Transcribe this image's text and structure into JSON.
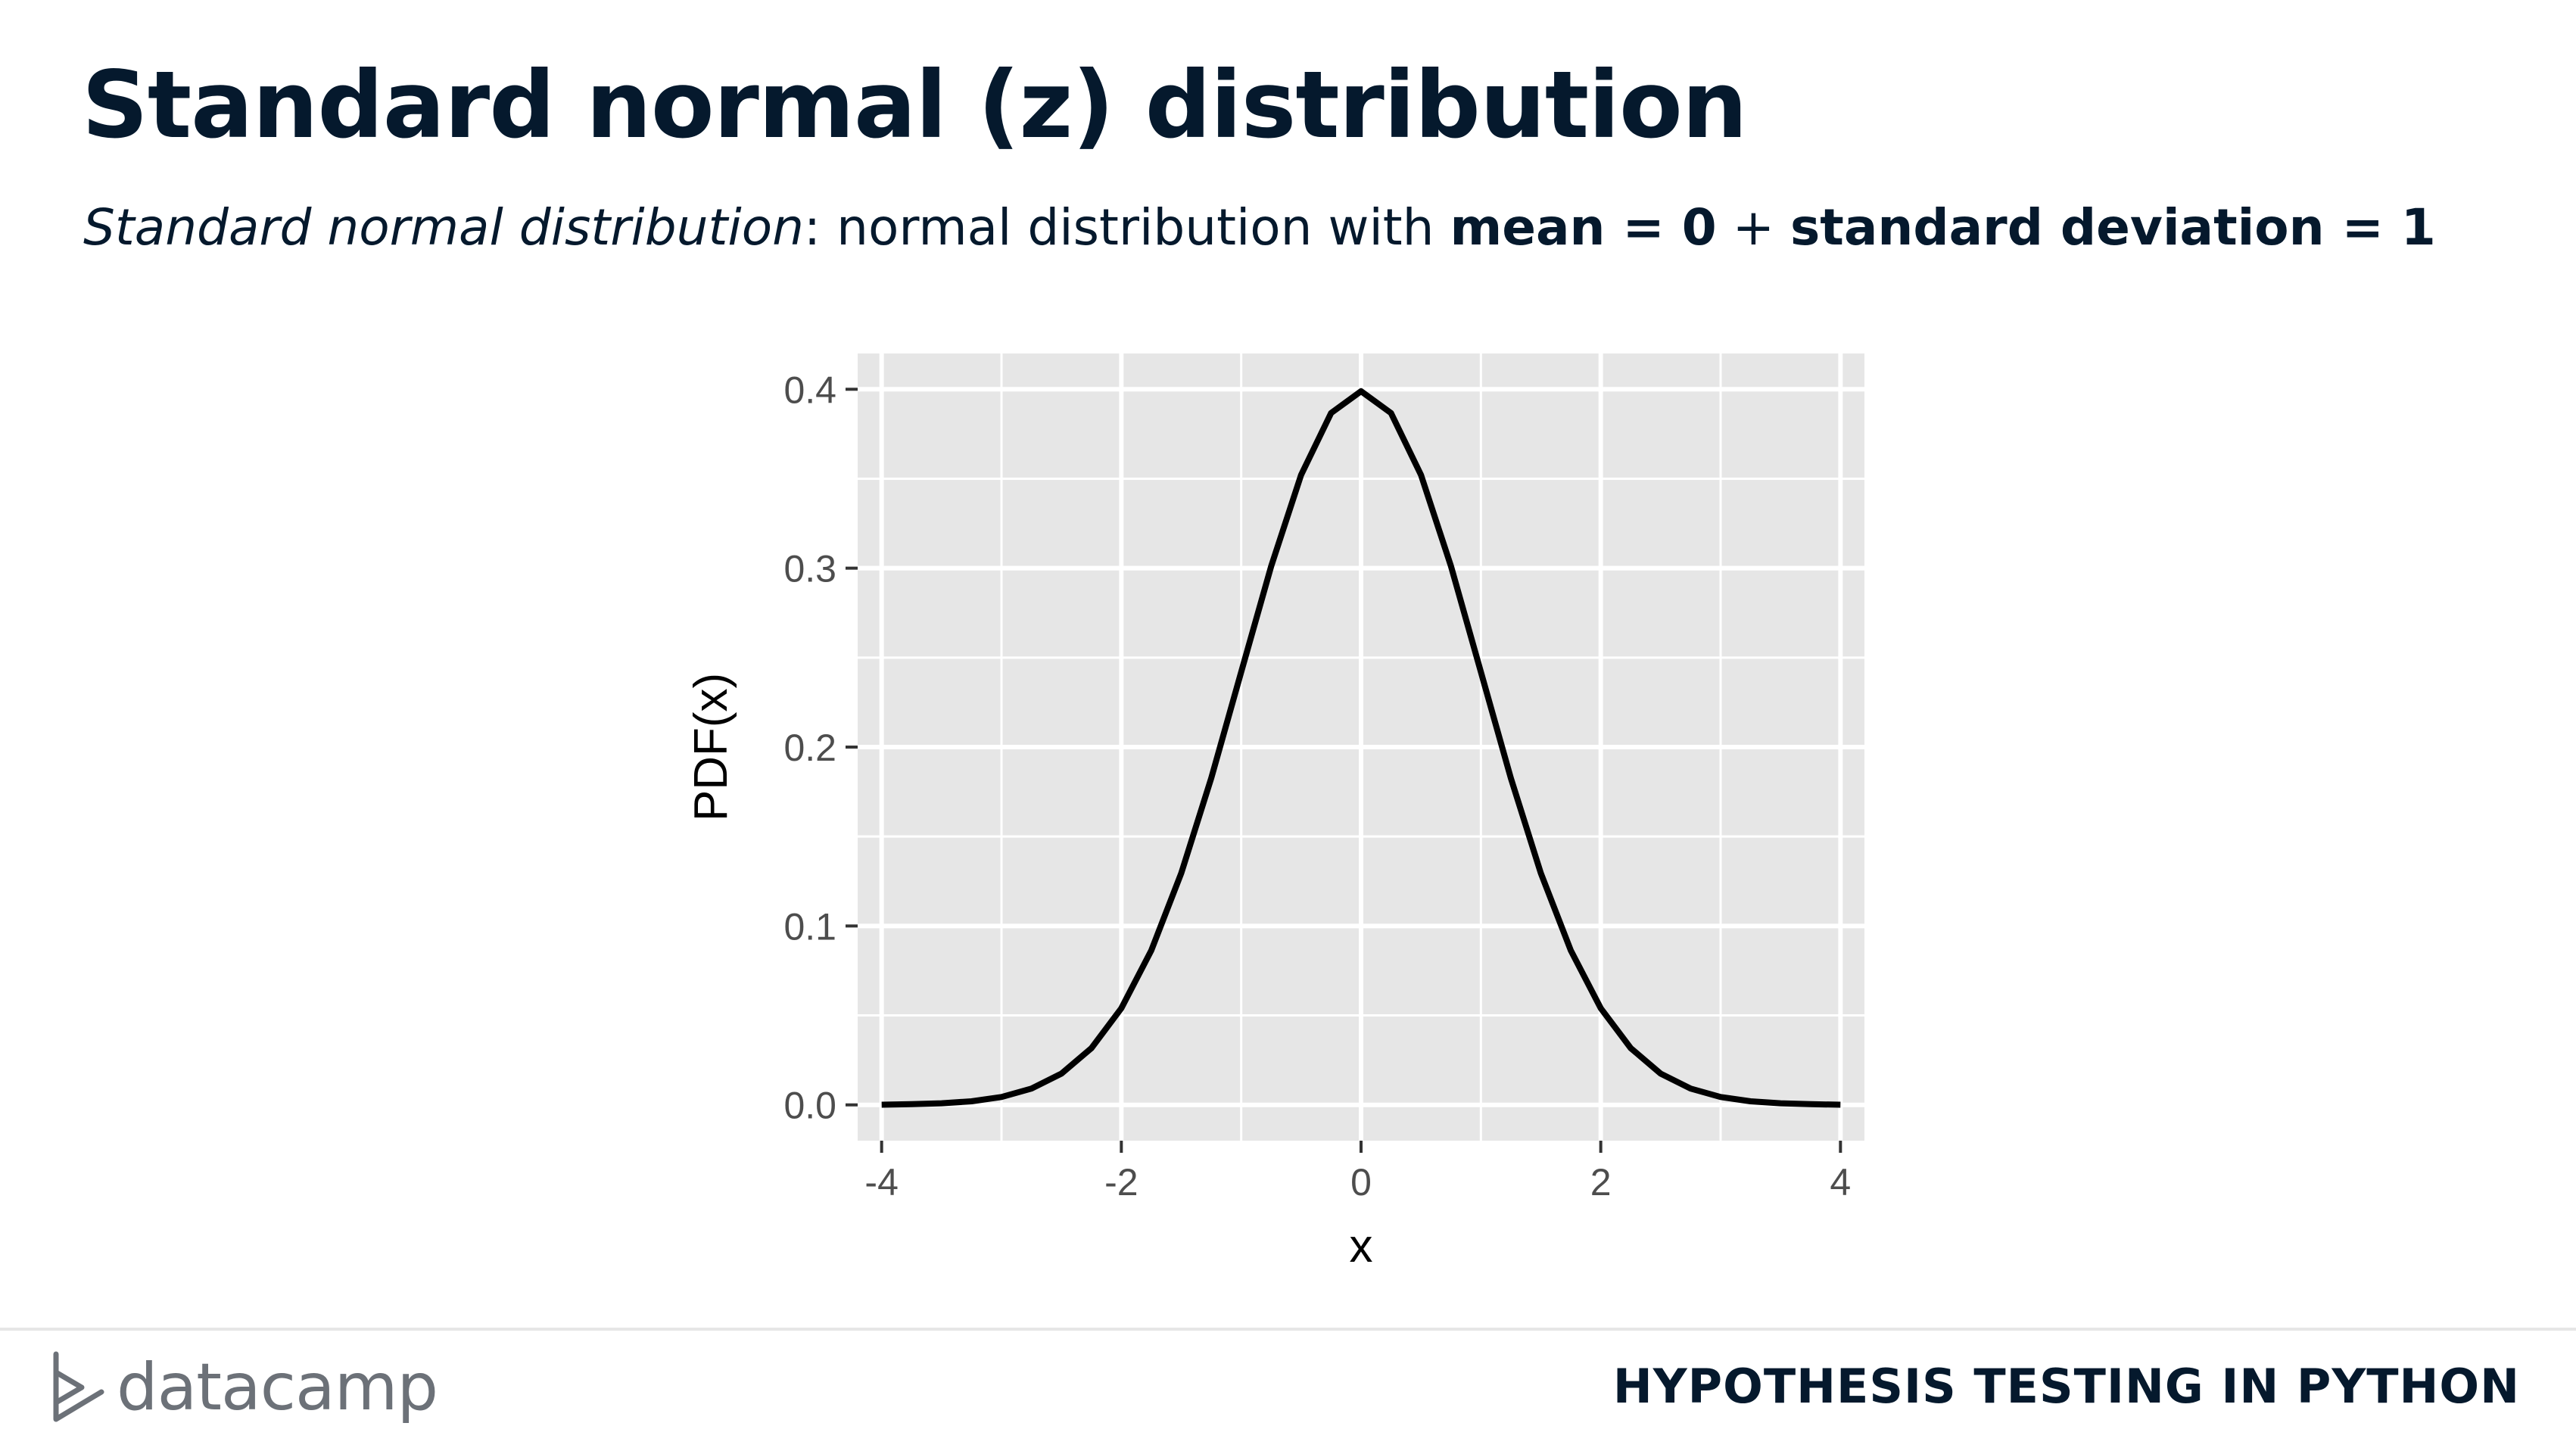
{
  "slide": {
    "title": "Standard normal (z) distribution",
    "subtitle": {
      "term": "Standard normal distribution",
      "colon_text": ": normal distribution with ",
      "mean_text": "mean = 0",
      "plus_text": " + ",
      "sd_text": "standard deviation = 1"
    }
  },
  "footer": {
    "brand": "datacamp",
    "course": "HYPOTHESIS TESTING IN PYTHON"
  },
  "colors": {
    "text": "#05192d",
    "panel_bg": "#e6e6e6",
    "grid": "#ffffff",
    "curve": "#000000",
    "tick_text": "#4d4d4d"
  },
  "chart_data": {
    "type": "line",
    "title": "",
    "xlabel": "x",
    "ylabel": "PDF(x)",
    "xlim": [
      -4.2,
      4.2
    ],
    "ylim": [
      -0.02,
      0.42
    ],
    "x_ticks": [
      -4,
      -2,
      0,
      2,
      4
    ],
    "x_tick_labels": [
      "-4",
      "-2",
      "0",
      "2",
      "4"
    ],
    "y_ticks": [
      0.0,
      0.1,
      0.2,
      0.3,
      0.4
    ],
    "y_tick_labels": [
      "0.0",
      "0.1",
      "0.2",
      "0.3",
      "0.4"
    ],
    "x_minor": [
      -3,
      -1,
      1,
      3
    ],
    "y_minor": [
      0.05,
      0.15,
      0.25,
      0.35
    ],
    "grid": true,
    "legend": "none",
    "series": [
      {
        "x": [
          -4.0,
          -3.75,
          -3.5,
          -3.25,
          -3.0,
          -2.75,
          -2.5,
          -2.25,
          -2.0,
          -1.75,
          -1.5,
          -1.25,
          -1.0,
          -0.75,
          -0.5,
          -0.25,
          0.0,
          0.25,
          0.5,
          0.75,
          1.0,
          1.25,
          1.5,
          1.75,
          2.0,
          2.25,
          2.5,
          2.75,
          3.0,
          3.25,
          3.5,
          3.75,
          4.0
        ],
        "y": [
          0.0001,
          0.0004,
          0.0009,
          0.002,
          0.0044,
          0.0091,
          0.0175,
          0.0317,
          0.054,
          0.0863,
          0.1295,
          0.1826,
          0.242,
          0.3011,
          0.3521,
          0.3867,
          0.3989,
          0.3867,
          0.3521,
          0.3011,
          0.242,
          0.1826,
          0.1295,
          0.0863,
          0.054,
          0.0317,
          0.0175,
          0.0091,
          0.0044,
          0.002,
          0.0009,
          0.0004,
          0.0001
        ]
      }
    ]
  }
}
